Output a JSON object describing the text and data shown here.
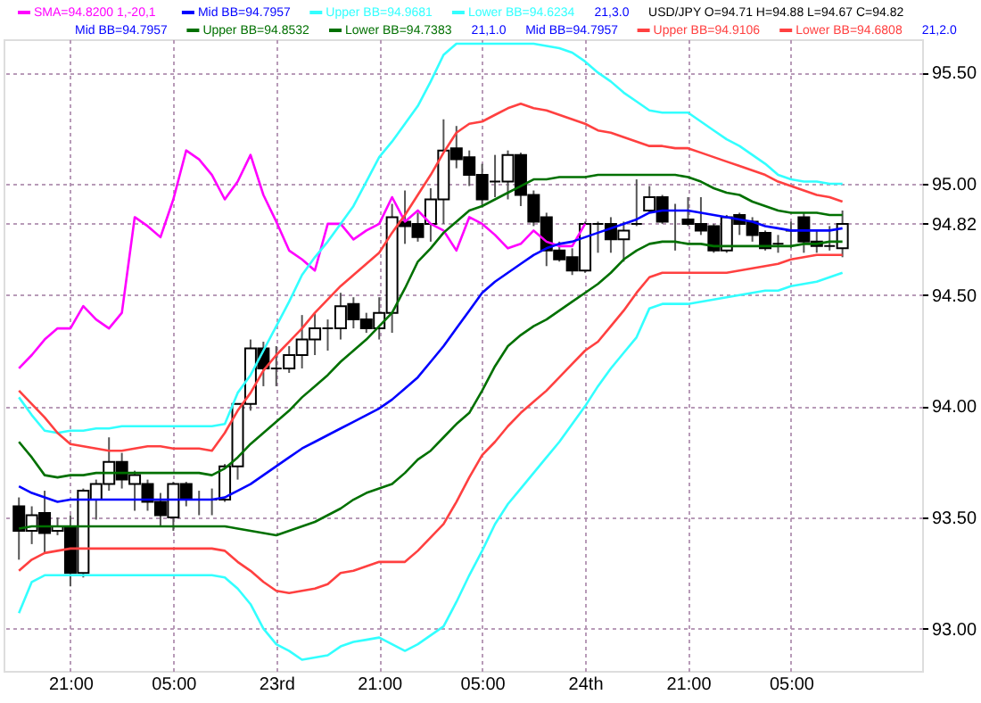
{
  "chart_data": {
    "type": "candlestick",
    "title": "USD/JPY O=94.71 H=94.88 L=94.67 C=94.82",
    "categories": [
      null,
      null,
      null,
      null,
      "21:00",
      null,
      null,
      null,
      null,
      null,
      null,
      null,
      "05:00",
      null,
      null,
      null,
      null,
      null,
      null,
      null,
      "23rd",
      null,
      null,
      null,
      null,
      null,
      null,
      null,
      "21:00",
      null,
      null,
      null,
      null,
      null,
      null,
      null,
      "05:00",
      null,
      null,
      null,
      null,
      null,
      null,
      null,
      "24th",
      null,
      null,
      null,
      null,
      null,
      null,
      null,
      "21:00",
      null,
      null,
      null,
      null,
      null,
      null,
      null,
      "05:00",
      null,
      null,
      null,
      null,
      null,
      null,
      null,
      null,
      null
    ],
    "ohlc": [
      [
        93.55,
        93.59,
        93.31,
        93.44
      ],
      [
        93.44,
        93.55,
        93.38,
        93.51
      ],
      [
        93.52,
        93.62,
        93.34,
        93.43
      ],
      [
        93.44,
        93.5,
        93.42,
        93.46
      ],
      [
        93.46,
        93.51,
        93.19,
        93.25
      ],
      [
        93.25,
        93.63,
        93.23,
        93.62
      ],
      [
        93.58,
        93.67,
        93.49,
        93.65
      ],
      [
        93.65,
        93.86,
        93.62,
        93.75
      ],
      [
        93.75,
        93.79,
        93.63,
        93.67
      ],
      [
        93.65,
        93.71,
        93.53,
        93.69
      ],
      [
        93.65,
        93.67,
        93.53,
        93.57
      ],
      [
        93.57,
        93.61,
        93.46,
        93.51
      ],
      [
        93.5,
        93.66,
        93.44,
        93.65
      ],
      [
        93.65,
        93.66,
        93.55,
        93.58
      ],
      [
        93.58,
        93.62,
        93.51,
        93.58
      ],
      [
        93.58,
        93.63,
        93.51,
        93.58
      ],
      [
        93.58,
        93.74,
        93.57,
        93.73
      ],
      [
        93.73,
        94.01,
        93.67,
        94.01
      ],
      [
        94.01,
        94.3,
        93.98,
        94.26
      ],
      [
        94.26,
        94.29,
        94.09,
        94.17
      ],
      [
        94.17,
        94.27,
        94.09,
        94.17
      ],
      [
        94.17,
        94.27,
        94.15,
        94.23
      ],
      [
        94.23,
        94.41,
        94.17,
        94.3
      ],
      [
        94.3,
        94.42,
        94.23,
        94.35
      ],
      [
        94.35,
        94.39,
        94.25,
        94.35
      ],
      [
        94.35,
        94.51,
        94.3,
        94.45
      ],
      [
        94.46,
        94.49,
        94.35,
        94.39
      ],
      [
        94.39,
        94.42,
        94.33,
        94.35
      ],
      [
        94.35,
        94.49,
        94.3,
        94.42
      ],
      [
        94.42,
        94.91,
        94.33,
        94.85
      ],
      [
        94.83,
        94.97,
        94.73,
        94.81
      ],
      [
        94.82,
        94.87,
        94.74,
        94.76
      ],
      [
        94.82,
        94.98,
        94.74,
        94.93
      ],
      [
        94.93,
        95.29,
        94.82,
        95.15
      ],
      [
        95.16,
        95.26,
        95.07,
        95.11
      ],
      [
        95.12,
        95.15,
        94.99,
        95.04
      ],
      [
        95.04,
        95.09,
        94.9,
        94.93
      ],
      [
        95.01,
        95.13,
        94.94,
        95.01
      ],
      [
        95.01,
        95.15,
        94.93,
        95.13
      ],
      [
        95.13,
        95.14,
        94.9,
        94.95
      ],
      [
        94.95,
        94.97,
        94.81,
        94.83
      ],
      [
        94.85,
        94.87,
        94.63,
        94.7
      ],
      [
        94.7,
        94.74,
        94.65,
        94.66
      ],
      [
        94.67,
        94.71,
        94.59,
        94.61
      ],
      [
        94.61,
        94.83,
        94.6,
        94.82
      ],
      [
        94.82,
        94.83,
        94.69,
        94.82
      ],
      [
        94.82,
        94.85,
        94.69,
        94.75
      ],
      [
        94.75,
        94.83,
        94.65,
        94.79
      ],
      [
        94.82,
        95.02,
        94.81,
        94.82
      ],
      [
        94.88,
        94.99,
        94.87,
        94.94
      ],
      [
        94.94,
        94.95,
        94.82,
        94.83
      ],
      [
        94.88,
        94.91,
        94.7,
        94.88
      ],
      [
        94.84,
        94.94,
        94.81,
        94.82
      ],
      [
        94.82,
        94.94,
        94.77,
        94.79
      ],
      [
        94.81,
        94.82,
        94.69,
        94.7
      ],
      [
        94.7,
        94.86,
        94.69,
        94.85
      ],
      [
        94.86,
        94.87,
        94.77,
        94.82
      ],
      [
        94.83,
        94.85,
        94.74,
        94.77
      ],
      [
        94.78,
        94.79,
        94.7,
        94.71
      ],
      [
        94.73,
        94.77,
        94.69,
        94.73
      ],
      [
        94.79,
        94.83,
        94.71,
        94.79
      ],
      [
        94.85,
        94.87,
        94.69,
        94.74
      ],
      [
        94.74,
        94.79,
        94.69,
        94.72
      ],
      [
        94.72,
        94.81,
        94.7,
        94.72
      ],
      [
        94.71,
        94.88,
        94.67,
        94.82
      ],
      null,
      null,
      null,
      null,
      null
    ],
    "series": [
      {
        "name": "SMA=94.8200 1,-20,1",
        "type": "line",
        "color": "#ff00ff",
        "values": [
          94.17,
          94.23,
          94.3,
          94.35,
          94.35,
          94.45,
          94.39,
          94.35,
          94.42,
          94.85,
          94.81,
          94.76,
          94.93,
          95.15,
          95.11,
          95.04,
          94.93,
          95.01,
          95.13,
          94.95,
          94.83,
          94.7,
          94.66,
          94.61,
          94.82,
          94.82,
          94.75,
          94.79,
          94.82,
          94.94,
          94.83,
          94.88,
          94.82,
          94.79,
          94.7,
          94.85,
          94.82,
          94.77,
          94.71,
          94.73,
          94.79,
          94.74,
          94.72,
          94.72,
          94.82,
          null,
          null,
          null,
          null,
          null,
          null,
          null,
          null,
          null,
          null,
          null,
          null,
          null,
          null,
          null,
          null,
          null,
          null,
          null,
          null,
          null,
          null,
          null,
          null,
          null
        ]
      },
      {
        "name": "Mid BB=94.7957",
        "type": "line",
        "color": "#0000ff",
        "values": [
          93.64,
          93.61,
          93.59,
          93.57,
          93.58,
          93.58,
          93.58,
          93.58,
          93.58,
          93.58,
          93.58,
          93.58,
          93.58,
          93.58,
          93.58,
          93.58,
          93.59,
          93.62,
          93.65,
          93.69,
          93.73,
          93.77,
          93.81,
          93.84,
          93.87,
          93.9,
          93.93,
          93.96,
          93.99,
          94.03,
          94.08,
          94.13,
          94.2,
          94.27,
          94.35,
          94.43,
          94.51,
          94.56,
          94.6,
          94.64,
          94.68,
          94.71,
          94.73,
          94.74,
          94.76,
          94.78,
          94.8,
          94.82,
          94.84,
          94.87,
          94.88,
          94.88,
          94.88,
          94.87,
          94.86,
          94.85,
          94.84,
          94.83,
          94.81,
          94.8,
          94.79,
          94.79,
          94.79,
          94.79,
          94.8,
          null,
          null,
          null,
          null,
          null
        ]
      },
      {
        "name": "Upper BB=94.9681",
        "type": "line",
        "color": "#33ffff",
        "values": [
          94.04,
          93.96,
          93.89,
          93.88,
          93.89,
          93.89,
          93.9,
          93.9,
          93.91,
          93.91,
          93.91,
          93.91,
          93.91,
          93.91,
          93.91,
          93.91,
          93.92,
          94.06,
          94.14,
          94.25,
          94.36,
          94.47,
          94.59,
          94.67,
          94.74,
          94.82,
          94.9,
          95.01,
          95.12,
          95.19,
          95.27,
          95.35,
          95.46,
          95.58,
          95.63,
          95.63,
          95.63,
          95.63,
          95.63,
          95.63,
          95.63,
          95.62,
          95.61,
          95.59,
          95.55,
          95.5,
          95.46,
          95.41,
          95.37,
          95.33,
          95.32,
          95.32,
          95.32,
          95.28,
          95.24,
          95.2,
          95.17,
          95.13,
          95.09,
          95.04,
          95.02,
          95.01,
          95.01,
          95.0,
          95.0,
          null,
          null,
          null,
          null,
          null
        ]
      },
      {
        "name": "Lower BB=94.6234",
        "type": "line",
        "color": "#33ffff",
        "values": [
          93.07,
          93.21,
          93.24,
          93.24,
          93.24,
          93.24,
          93.24,
          93.24,
          93.24,
          93.24,
          93.24,
          93.24,
          93.24,
          93.24,
          93.24,
          93.24,
          93.23,
          93.18,
          93.11,
          93.0,
          92.93,
          92.9,
          92.86,
          92.87,
          92.88,
          92.92,
          92.94,
          92.95,
          92.96,
          92.93,
          92.9,
          92.93,
          92.97,
          93.01,
          93.12,
          93.24,
          93.35,
          93.47,
          93.56,
          93.63,
          93.7,
          93.77,
          93.84,
          93.92,
          94.0,
          94.09,
          94.17,
          94.24,
          94.31,
          94.44,
          94.46,
          94.46,
          94.46,
          94.47,
          94.48,
          94.49,
          94.5,
          94.51,
          94.52,
          94.52,
          94.54,
          94.55,
          94.56,
          94.58,
          94.6,
          null,
          null,
          null,
          null,
          null
        ]
      },
      {
        "name": "Upper BB=94.8532",
        "type": "line",
        "color": "#007000",
        "values": [
          93.84,
          93.77,
          93.69,
          93.68,
          93.69,
          93.69,
          93.7,
          93.7,
          93.7,
          93.7,
          93.7,
          93.7,
          93.7,
          93.7,
          93.7,
          93.69,
          93.72,
          93.77,
          93.83,
          93.88,
          93.93,
          93.98,
          94.04,
          94.09,
          94.14,
          94.2,
          94.25,
          94.3,
          94.36,
          94.42,
          94.53,
          94.65,
          94.71,
          94.78,
          94.83,
          94.88,
          94.9,
          94.93,
          94.96,
          94.99,
          95.02,
          95.02,
          95.03,
          95.03,
          95.03,
          95.04,
          95.04,
          95.04,
          95.04,
          95.04,
          95.04,
          95.04,
          95.03,
          95.01,
          94.98,
          94.96,
          94.95,
          94.92,
          94.9,
          94.88,
          94.87,
          94.87,
          94.87,
          94.86,
          94.86,
          null,
          null,
          null,
          null,
          null
        ]
      },
      {
        "name": "Lower BB=94.7383",
        "type": "line",
        "color": "#007000",
        "values": [
          93.45,
          93.46,
          93.46,
          93.46,
          93.46,
          93.46,
          93.46,
          93.46,
          93.46,
          93.46,
          93.46,
          93.46,
          93.46,
          93.46,
          93.46,
          93.46,
          93.46,
          93.45,
          93.44,
          93.43,
          93.42,
          93.44,
          93.46,
          93.48,
          93.51,
          93.54,
          93.58,
          93.61,
          93.63,
          93.65,
          93.7,
          93.76,
          93.8,
          93.86,
          93.92,
          93.97,
          94.07,
          94.18,
          94.27,
          94.32,
          94.36,
          94.39,
          94.43,
          94.47,
          94.51,
          94.55,
          94.6,
          94.66,
          94.7,
          94.73,
          94.74,
          94.74,
          94.73,
          94.73,
          94.72,
          94.72,
          94.72,
          94.72,
          94.72,
          94.72,
          94.72,
          94.73,
          94.73,
          94.74,
          94.74,
          null,
          null,
          null,
          null,
          null
        ]
      },
      {
        "name": "Upper BB=94.9106",
        "type": "line",
        "color": "#ff4040",
        "values": [
          94.07,
          94.01,
          93.95,
          93.88,
          93.83,
          93.82,
          93.81,
          93.8,
          93.8,
          93.81,
          93.82,
          93.82,
          93.81,
          93.81,
          93.81,
          93.8,
          93.88,
          93.98,
          94.06,
          94.16,
          94.23,
          94.29,
          94.35,
          94.42,
          94.48,
          94.54,
          94.59,
          94.64,
          94.69,
          94.78,
          94.86,
          94.95,
          95.04,
          95.14,
          95.23,
          95.27,
          95.28,
          95.31,
          95.34,
          95.36,
          95.34,
          95.33,
          95.31,
          95.29,
          95.27,
          95.24,
          95.23,
          95.21,
          95.19,
          95.17,
          95.17,
          95.16,
          95.16,
          95.14,
          95.12,
          95.1,
          95.08,
          95.06,
          95.04,
          95.01,
          94.99,
          94.97,
          94.95,
          94.94,
          94.92,
          null,
          null,
          null,
          null,
          null
        ]
      },
      {
        "name": "Lower BB=94.6808",
        "type": "line",
        "color": "#ff4040",
        "values": [
          93.26,
          93.31,
          93.34,
          93.35,
          93.36,
          93.36,
          93.36,
          93.36,
          93.36,
          93.36,
          93.36,
          93.36,
          93.36,
          93.36,
          93.36,
          93.36,
          93.35,
          93.3,
          93.26,
          93.21,
          93.17,
          93.16,
          93.17,
          93.18,
          93.2,
          93.25,
          93.26,
          93.28,
          93.3,
          93.3,
          93.3,
          93.35,
          93.41,
          93.47,
          93.57,
          93.68,
          93.78,
          93.84,
          93.91,
          93.97,
          94.02,
          94.07,
          94.13,
          94.19,
          94.25,
          94.29,
          94.36,
          94.43,
          94.51,
          94.58,
          94.6,
          94.6,
          94.6,
          94.6,
          94.6,
          94.6,
          94.61,
          94.62,
          94.63,
          94.64,
          94.66,
          94.67,
          94.68,
          94.68,
          94.68,
          null,
          null,
          null,
          null,
          null
        ]
      }
    ],
    "annotations": [
      "21,3.0",
      "Mid BB=94.7957",
      "21,1.0",
      "Mid BB=94.7957",
      "21,2.0"
    ],
    "ylim": [
      92.81,
      95.65
    ],
    "yticks": [
      {
        "value": 93,
        "label": "93.00"
      },
      {
        "value": 93.5,
        "label": "93.50"
      },
      {
        "value": 94,
        "label": "94.00"
      },
      {
        "value": 94.5,
        "label": "94.50"
      },
      {
        "value": 94.82,
        "label": "94.82"
      },
      {
        "value": 95,
        "label": "95.00"
      },
      {
        "value": 95.5,
        "label": "95.50"
      }
    ],
    "grid": true,
    "legend": "top"
  }
}
